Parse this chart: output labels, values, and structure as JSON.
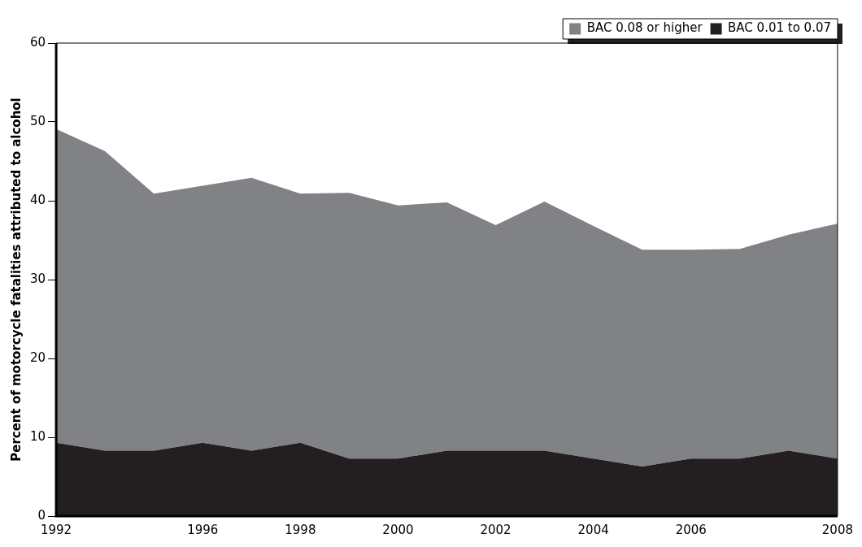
{
  "chart_data": {
    "type": "area",
    "ylabel": "Percent of motorcycle fatalities attributed to alcohol",
    "categories": [
      "1992",
      null,
      null,
      "1996",
      null,
      "1998",
      null,
      "2000",
      null,
      "2002",
      null,
      "2004",
      null,
      "2006",
      null,
      null,
      "2008"
    ],
    "stacked": true,
    "ylim": [
      0,
      60
    ],
    "yticks": [
      0,
      10,
      20,
      30,
      40,
      50,
      60
    ],
    "grid": false,
    "legend": "top right",
    "series": [
      {
        "name": "BAC 0.01 to 0.07",
        "color": "#231f20",
        "values": [
          9.3,
          8.3,
          8.3,
          9.3,
          8.3,
          9.3,
          7.3,
          7.3,
          8.3,
          8.3,
          8.3,
          7.3,
          6.3,
          7.3,
          7.3,
          8.3,
          7.3
        ]
      },
      {
        "name": "BAC 0.08 or higher",
        "color": "#818285",
        "values": [
          39.8,
          38.0,
          32.6,
          32.6,
          34.6,
          31.6,
          33.7,
          32.1,
          31.5,
          28.6,
          31.6,
          29.5,
          27.5,
          26.5,
          26.6,
          27.4,
          29.8
        ]
      }
    ]
  }
}
